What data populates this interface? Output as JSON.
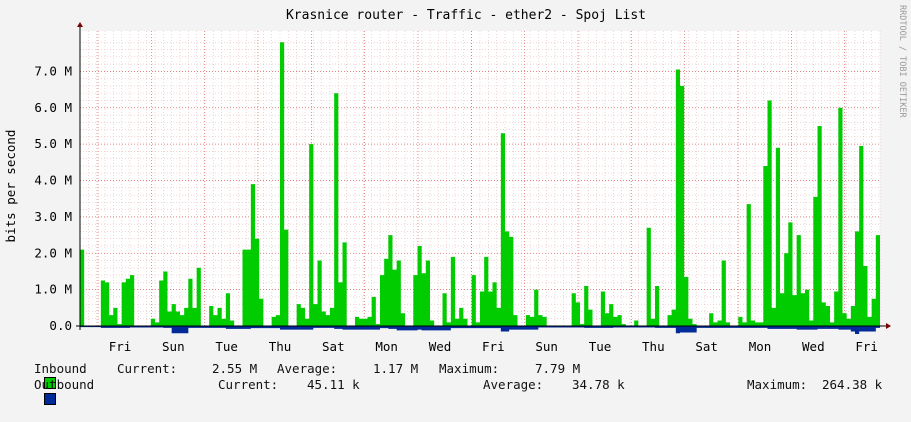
{
  "chart_data": {
    "type": "area",
    "title": "Krasnice router - Traffic - ether2 - Spoj List",
    "ylabel": "bits per second",
    "watermark": "RRDTOOL / TOBI OETIKER",
    "ylim": [
      0,
      8000000
    ],
    "y_ticks": [
      {
        "value": 0,
        "label": "0.0"
      },
      {
        "value": 1000000,
        "label": "1.0 M"
      },
      {
        "value": 2000000,
        "label": "2.0 M"
      },
      {
        "value": 3000000,
        "label": "3.0 M"
      },
      {
        "value": 4000000,
        "label": "4.0 M"
      },
      {
        "value": 5000000,
        "label": "5.0 M"
      },
      {
        "value": 6000000,
        "label": "6.0 M"
      },
      {
        "value": 7000000,
        "label": "7.0 M"
      }
    ],
    "x_ticks": [
      "Fri",
      "Sun",
      "Tue",
      "Thu",
      "Sat",
      "Mon",
      "Wed",
      "Fri",
      "Sun",
      "Tue",
      "Thu",
      "Sat",
      "Mon",
      "Wed",
      "Fri"
    ],
    "grid": true,
    "series": [
      {
        "name": "Inbound",
        "color": "#00cc00",
        "points": [
          [
            0,
            2.1
          ],
          [
            1,
            0
          ],
          [
            4,
            0
          ],
          [
            5,
            1.25
          ],
          [
            6,
            1.2
          ],
          [
            7,
            0.3
          ],
          [
            8,
            0.5
          ],
          [
            9,
            0.05
          ],
          [
            10,
            1.2
          ],
          [
            11,
            1.3
          ],
          [
            12,
            1.4
          ],
          [
            13,
            0
          ],
          [
            17,
            0.2
          ],
          [
            18,
            0.1
          ],
          [
            19,
            1.25
          ],
          [
            20,
            1.5
          ],
          [
            21,
            0.4
          ],
          [
            22,
            0.6
          ],
          [
            23,
            0.4
          ],
          [
            24,
            0.3
          ],
          [
            25,
            0.5
          ],
          [
            26,
            1.3
          ],
          [
            27,
            0.5
          ],
          [
            28,
            1.6
          ],
          [
            29,
            0
          ],
          [
            31,
            0.55
          ],
          [
            32,
            0.3
          ],
          [
            33,
            0.5
          ],
          [
            34,
            0.2
          ],
          [
            35,
            0.9
          ],
          [
            36,
            0.15
          ],
          [
            37,
            0
          ],
          [
            39,
            2.1
          ],
          [
            40,
            2.1
          ],
          [
            41,
            3.9
          ],
          [
            42,
            2.4
          ],
          [
            43,
            0.75
          ],
          [
            44,
            0
          ],
          [
            46,
            0.25
          ],
          [
            47,
            0.3
          ],
          [
            48,
            7.8
          ],
          [
            49,
            2.65
          ],
          [
            50,
            0
          ],
          [
            52,
            0.6
          ],
          [
            53,
            0.5
          ],
          [
            54,
            0.2
          ],
          [
            55,
            5.0
          ],
          [
            56,
            0.6
          ],
          [
            57,
            1.8
          ],
          [
            58,
            0.4
          ],
          [
            59,
            0.3
          ],
          [
            60,
            0.5
          ],
          [
            61,
            6.4
          ],
          [
            62,
            1.2
          ],
          [
            63,
            2.3
          ],
          [
            64,
            0
          ],
          [
            66,
            0.25
          ],
          [
            67,
            0.2
          ],
          [
            68,
            0.2
          ],
          [
            69,
            0.25
          ],
          [
            70,
            0.8
          ],
          [
            71,
            0.05
          ],
          [
            72,
            1.4
          ],
          [
            73,
            1.85
          ],
          [
            74,
            2.5
          ],
          [
            75,
            1.55
          ],
          [
            76,
            1.8
          ],
          [
            77,
            0.35
          ],
          [
            78,
            0
          ],
          [
            80,
            1.4
          ],
          [
            81,
            2.2
          ],
          [
            82,
            1.45
          ],
          [
            83,
            1.8
          ],
          [
            84,
            0.15
          ],
          [
            85,
            0
          ],
          [
            87,
            0.9
          ],
          [
            88,
            0.1
          ],
          [
            89,
            1.9
          ],
          [
            90,
            0.2
          ],
          [
            91,
            0.5
          ],
          [
            92,
            0.2
          ],
          [
            93,
            0
          ],
          [
            94,
            1.4
          ],
          [
            95,
            0.1
          ],
          [
            96,
            0.95
          ],
          [
            97,
            1.9
          ],
          [
            98,
            0.95
          ],
          [
            99,
            1.2
          ],
          [
            100,
            0.5
          ],
          [
            101,
            5.3
          ],
          [
            102,
            2.6
          ],
          [
            103,
            2.45
          ],
          [
            104,
            0.3
          ],
          [
            105,
            0
          ],
          [
            107,
            0.3
          ],
          [
            108,
            0.25
          ],
          [
            109,
            1.0
          ],
          [
            110,
            0.3
          ],
          [
            111,
            0.25
          ],
          [
            112,
            0
          ],
          [
            118,
            0.9
          ],
          [
            119,
            0.65
          ],
          [
            120,
            0.05
          ],
          [
            121,
            1.1
          ],
          [
            122,
            0.45
          ],
          [
            123,
            0
          ],
          [
            125,
            0.95
          ],
          [
            126,
            0.35
          ],
          [
            127,
            0.6
          ],
          [
            128,
            0.25
          ],
          [
            129,
            0.3
          ],
          [
            130,
            0.05
          ],
          [
            131,
            0
          ],
          [
            133,
            0.15
          ],
          [
            134,
            0
          ],
          [
            136,
            2.7
          ],
          [
            137,
            0.2
          ],
          [
            138,
            1.1
          ],
          [
            139,
            0
          ],
          [
            141,
            0.3
          ],
          [
            142,
            0.45
          ],
          [
            143,
            7.05
          ],
          [
            144,
            6.6
          ],
          [
            145,
            1.35
          ],
          [
            146,
            0.2
          ],
          [
            147,
            0.05
          ],
          [
            148,
            0
          ],
          [
            151,
            0.35
          ],
          [
            152,
            0.1
          ],
          [
            153,
            0.15
          ],
          [
            154,
            1.8
          ],
          [
            155,
            0.1
          ],
          [
            156,
            0
          ],
          [
            158,
            0.25
          ],
          [
            159,
            0.1
          ],
          [
            160,
            3.35
          ],
          [
            161,
            0.15
          ],
          [
            162,
            0.1
          ],
          [
            163,
            0.1
          ],
          [
            164,
            4.4
          ],
          [
            165,
            6.2
          ],
          [
            166,
            0.5
          ],
          [
            167,
            4.9
          ],
          [
            168,
            0.9
          ],
          [
            169,
            2.0
          ],
          [
            170,
            2.85
          ],
          [
            171,
            0.85
          ],
          [
            172,
            2.5
          ],
          [
            173,
            0.9
          ],
          [
            174,
            1.0
          ],
          [
            175,
            0.15
          ],
          [
            176,
            3.55
          ],
          [
            177,
            5.5
          ],
          [
            178,
            0.65
          ],
          [
            179,
            0.55
          ],
          [
            180,
            0.1
          ],
          [
            181,
            0.95
          ],
          [
            182,
            6.0
          ],
          [
            183,
            0.35
          ],
          [
            184,
            0.2
          ],
          [
            185,
            0.55
          ],
          [
            186,
            2.6
          ],
          [
            187,
            4.95
          ],
          [
            188,
            1.65
          ],
          [
            189,
            0.25
          ],
          [
            190,
            0.75
          ],
          [
            191,
            2.5
          ],
          [
            192,
            0
          ]
        ]
      },
      {
        "name": "Outbound",
        "color": "#002a97",
        "points": [
          [
            0,
            0.03
          ],
          [
            5,
            0.05
          ],
          [
            12,
            0.04
          ],
          [
            20,
            0.05
          ],
          [
            22,
            0.2
          ],
          [
            26,
            0.05
          ],
          [
            31,
            0.05
          ],
          [
            35,
            0.08
          ],
          [
            41,
            0.06
          ],
          [
            48,
            0.1
          ],
          [
            56,
            0.05
          ],
          [
            61,
            0.08
          ],
          [
            63,
            0.1
          ],
          [
            72,
            0.06
          ],
          [
            74,
            0.08
          ],
          [
            76,
            0.12
          ],
          [
            81,
            0.1
          ],
          [
            82,
            0.12
          ],
          [
            89,
            0.06
          ],
          [
            97,
            0.06
          ],
          [
            101,
            0.15
          ],
          [
            103,
            0.1
          ],
          [
            110,
            0.04
          ],
          [
            121,
            0.05
          ],
          [
            128,
            0.04
          ],
          [
            138,
            0.05
          ],
          [
            143,
            0.2
          ],
          [
            144,
            0.18
          ],
          [
            148,
            0.05
          ],
          [
            160,
            0.05
          ],
          [
            165,
            0.08
          ],
          [
            172,
            0.1
          ],
          [
            177,
            0.08
          ],
          [
            182,
            0.1
          ],
          [
            185,
            0.15
          ],
          [
            186,
            0.25
          ],
          [
            187,
            0.15
          ],
          [
            191,
            0.05
          ],
          [
            192,
            0.03
          ]
        ]
      }
    ],
    "legend": {
      "inbound": {
        "name": "Inbound",
        "current_label": "Current:",
        "current": "2.55 M",
        "average_label": "Average:",
        "average": "1.17 M",
        "maximum_label": "Maximum:",
        "maximum": "7.79 M"
      },
      "outbound": {
        "name": "Outbound",
        "current_label": "Current:",
        "current": "45.11 k",
        "average_label": "Average:",
        "average": "34.78 k",
        "maximum_label": "Maximum:",
        "maximum": "264.38 k"
      }
    }
  }
}
